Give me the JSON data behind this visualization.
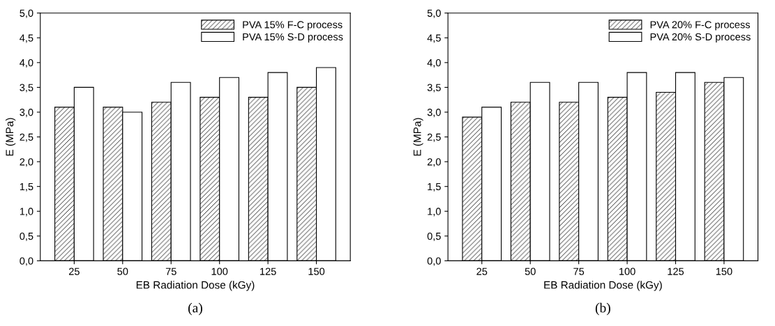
{
  "chart_data": [
    {
      "type": "bar",
      "xlabel": "EB Radiation Dose (kGy)",
      "ylabel": "E (MPa)",
      "categories": [
        "25",
        "50",
        "75",
        "100",
        "125",
        "150"
      ],
      "series": [
        {
          "name": "PVA 15% F-C process",
          "color": "#000000",
          "values": [
            3.1,
            3.1,
            3.2,
            3.3,
            3.3,
            3.5
          ]
        },
        {
          "name": "PVA 15% S-D process",
          "color": "#ffffff",
          "values": [
            3.5,
            3.0,
            3.6,
            3.7,
            3.8,
            3.9
          ]
        }
      ],
      "ylim": [
        0,
        5
      ],
      "yticks": [
        {
          "value": 0,
          "label": "0,0"
        },
        {
          "value": 0.5,
          "label": "0,5"
        },
        {
          "value": 1,
          "label": "1,0"
        },
        {
          "value": 1.5,
          "label": "1,5"
        },
        {
          "value": 2,
          "label": "2,0"
        },
        {
          "value": 2.5,
          "label": "2,5"
        },
        {
          "value": 3,
          "label": "3,0"
        },
        {
          "value": 3.5,
          "label": "3,5"
        },
        {
          "value": 4,
          "label": "4,0"
        },
        {
          "value": 4.5,
          "label": "4,5"
        },
        {
          "value": 5,
          "label": "5,0"
        }
      ],
      "legend": "top right",
      "grid": false,
      "annotations": [
        "(a)"
      ]
    },
    {
      "type": "bar",
      "xlabel": "EB Radiation Dose (kGy)",
      "ylabel": "E (MPa)",
      "categories": [
        "25",
        "50",
        "75",
        "100",
        "125",
        "150"
      ],
      "series": [
        {
          "name": "PVA 20% F-C process",
          "color": "#000000",
          "values": [
            2.9,
            3.2,
            3.2,
            3.3,
            3.4,
            3.6
          ]
        },
        {
          "name": "PVA 20% S-D process",
          "color": "#ffffff",
          "values": [
            3.1,
            3.6,
            3.6,
            3.8,
            3.8,
            3.7
          ]
        }
      ],
      "ylim": [
        0,
        5
      ],
      "yticks": [
        {
          "value": 0,
          "label": "0,0"
        },
        {
          "value": 0.5,
          "label": "0,5"
        },
        {
          "value": 1,
          "label": "1,0"
        },
        {
          "value": 1.5,
          "label": "1,5"
        },
        {
          "value": 2,
          "label": "2,0"
        },
        {
          "value": 2.5,
          "label": "2,5"
        },
        {
          "value": 3,
          "label": "3,0"
        },
        {
          "value": 3.5,
          "label": "3,5"
        },
        {
          "value": 4,
          "label": "4,0"
        },
        {
          "value": 4.5,
          "label": "4,5"
        },
        {
          "value": 5,
          "label": "5,0"
        }
      ],
      "legend": "top right",
      "grid": false,
      "annotations": [
        "(b)"
      ]
    }
  ]
}
